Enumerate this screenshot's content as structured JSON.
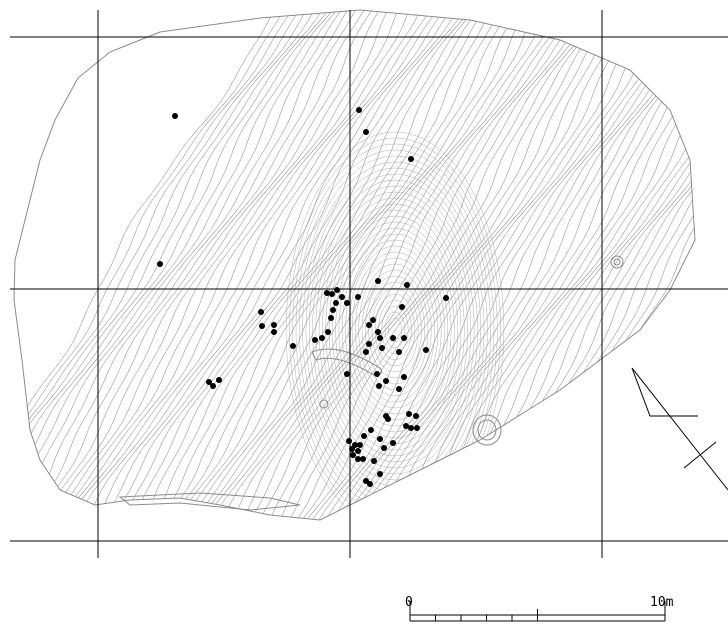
{
  "map": {
    "type": "contour-distribution-map",
    "colors": {
      "background": "#ffffff",
      "contour": "#9a9a9a",
      "grid": "#000000",
      "points": "#000000"
    },
    "scale_bar": {
      "start_label": "0",
      "end_label": "10m"
    },
    "north_arrow": "north-arrow-icon",
    "feature_count": 70
  }
}
